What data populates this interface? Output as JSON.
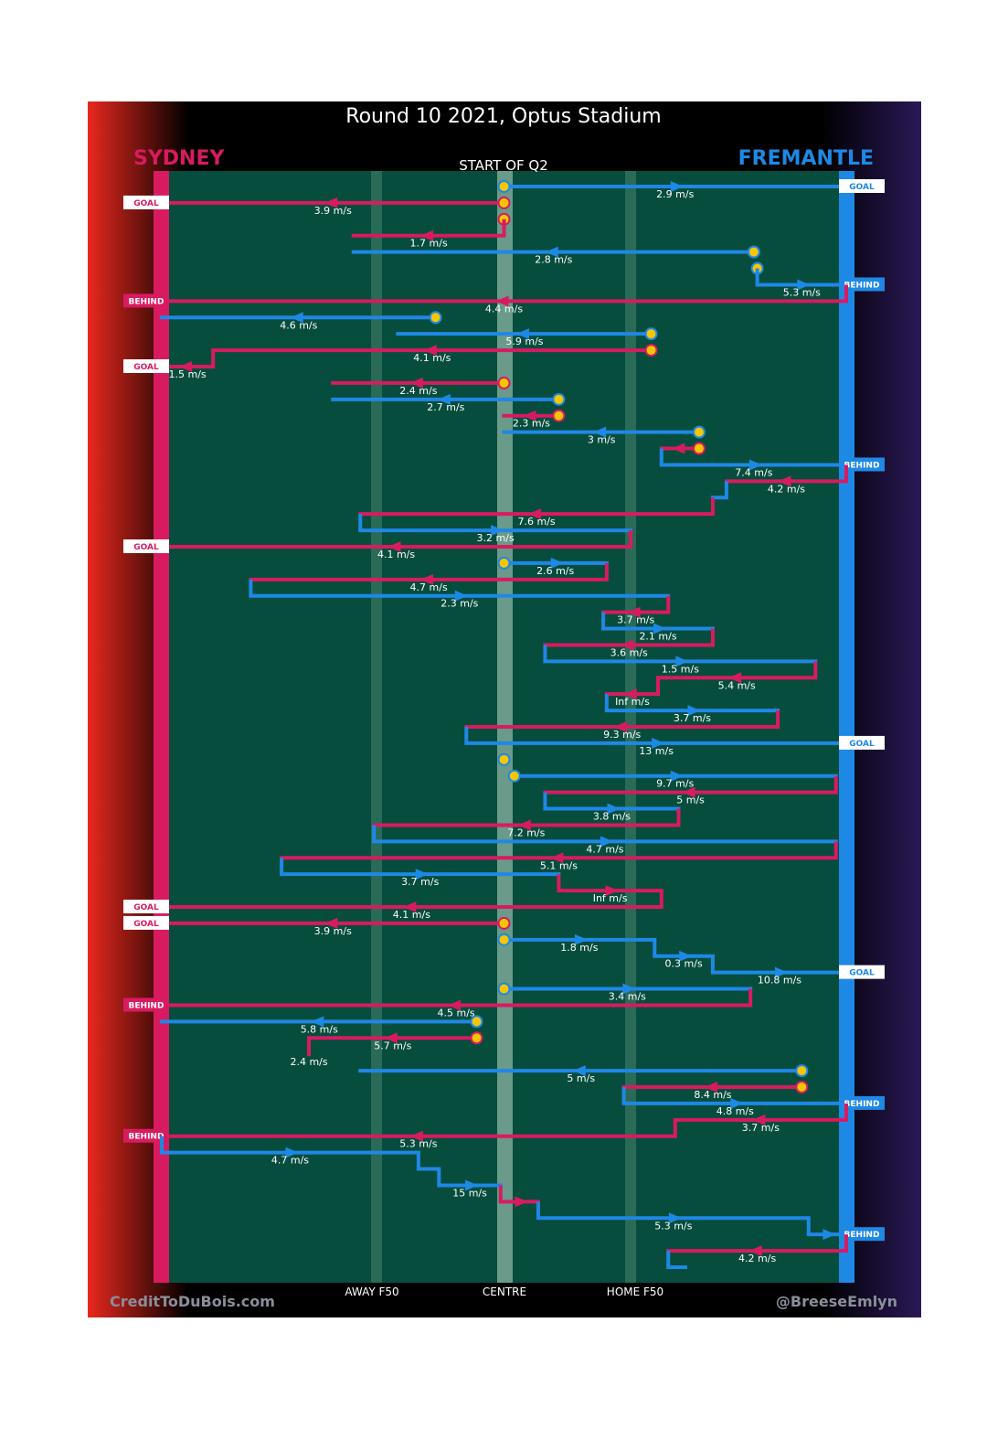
{
  "chart_data": {
    "type": "line",
    "title": "Round 10 2021, Optus Stadium",
    "subtitle": "START OF Q2",
    "teams": {
      "left": "SYDNEY",
      "right": "FREMANTLE"
    },
    "colors": {
      "left": "#d81b60",
      "right": "#1e88e5",
      "field": "#064d3e",
      "marker": "#f7c600"
    },
    "x_labels": {
      "away": "AWAY F50",
      "centre": "CENTRE",
      "home": "HOME F50"
    },
    "x_axis": {
      "range": [
        -1,
        1
      ],
      "away_f50": -0.4,
      "centre": 0,
      "home_f50": 0.375
    },
    "credits": {
      "left": "CreditToDuBois.com",
      "right": "@BreeseEmlyn"
    },
    "chains": [
      {
        "team": "fre",
        "end_x": 1.0,
        "start_x": 0.0,
        "steps": [],
        "speed": "2.9 m/s",
        "outcome": "GOAL"
      },
      {
        "team": "syd",
        "end_x": -1.0,
        "start_x": 0.0,
        "steps": [],
        "speed": "3.9 m/s",
        "outcome": "GOAL"
      },
      {
        "team": "syd",
        "end_x": 0.0,
        "start_x": 0.0,
        "steps": [],
        "speed": "",
        "outcome": ""
      },
      {
        "team": "syd",
        "end_x": -0.44,
        "start_x": 0.0,
        "steps": [],
        "speed": "1.7 m/s",
        "outcome": ""
      },
      {
        "team": "fre",
        "end_x": -0.44,
        "start_x": 0.73,
        "steps": [],
        "speed": "2.8 m/s",
        "outcome": ""
      },
      {
        "team": "fre",
        "end_x": 0.74,
        "start_x": 0.74,
        "steps": [
          0.74,
          0.74
        ],
        "speed": "",
        "outcome": ""
      },
      {
        "team": "fre",
        "end_x": 1.0,
        "start_x": 0.74,
        "steps": [],
        "speed": "5.3 m/s",
        "outcome": "BEHIND"
      },
      {
        "team": "syd",
        "end_x": -1.0,
        "start_x": 1.0,
        "steps": [],
        "speed": "4.4 m/s",
        "outcome": "BEHIND"
      },
      {
        "team": "fre",
        "end_x": -1.0,
        "start_x": -0.2,
        "steps": [],
        "speed": "4.6 m/s",
        "outcome": ""
      },
      {
        "team": "fre",
        "end_x": -0.31,
        "start_x": 0.43,
        "steps": [],
        "speed": "5.9 m/s",
        "outcome": ""
      },
      {
        "team": "syd",
        "end_x": -0.85,
        "start_x": 0.43,
        "steps": [],
        "speed": "4.1 m/s",
        "outcome": ""
      },
      {
        "team": "syd",
        "end_x": -1.0,
        "start_x": -0.85,
        "steps": [],
        "speed": "1.5 m/s",
        "outcome": "GOAL"
      },
      {
        "team": "syd",
        "end_x": -0.5,
        "start_x": 0.0,
        "steps": [],
        "speed": "2.4 m/s",
        "outcome": ""
      },
      {
        "team": "fre",
        "end_x": -0.5,
        "start_x": 0.16,
        "steps": [],
        "speed": "2.7 m/s",
        "outcome": ""
      },
      {
        "team": "syd",
        "end_x": 0.0,
        "start_x": 0.16,
        "steps": [],
        "speed": "2.3 m/s",
        "outcome": ""
      },
      {
        "team": "fre",
        "end_x": 0.0,
        "start_x": 0.57,
        "steps": [],
        "speed": "3 m/s",
        "outcome": ""
      },
      {
        "team": "syd",
        "end_x": 0.46,
        "start_x": 0.57,
        "steps": [],
        "speed": "",
        "outcome": ""
      },
      {
        "team": "fre",
        "end_x": 1.0,
        "start_x": 0.46,
        "steps": [],
        "speed": "7.4 m/s",
        "outcome": "BEHIND"
      },
      {
        "team": "syd",
        "end_x": 0.65,
        "start_x": 1.0,
        "steps": [],
        "speed": "4.2 m/s",
        "outcome": ""
      },
      {
        "team": "fre",
        "end_x": 0.61,
        "start_x": 0.65,
        "steps": [],
        "speed": "",
        "outcome": ""
      },
      {
        "team": "syd",
        "end_x": -0.42,
        "start_x": 0.61,
        "steps": [],
        "speed": "7.6 m/s",
        "outcome": ""
      },
      {
        "team": "fre",
        "end_x": 0.37,
        "start_x": -0.42,
        "steps": [],
        "speed": "3.2 m/s",
        "outcome": ""
      },
      {
        "team": "syd",
        "end_x": -1.0,
        "start_x": 0.37,
        "steps": [],
        "speed": "4.1 m/s",
        "outcome": "GOAL"
      },
      {
        "team": "fre",
        "end_x": 0.3,
        "start_x": 0.0,
        "steps": [],
        "speed": "2.6 m/s",
        "outcome": ""
      },
      {
        "team": "syd",
        "end_x": -0.74,
        "start_x": 0.3,
        "steps": [],
        "speed": "4.7 m/s",
        "outcome": ""
      },
      {
        "team": "fre",
        "end_x": 0.48,
        "start_x": -0.74,
        "steps": [],
        "speed": "2.3 m/s",
        "outcome": ""
      },
      {
        "team": "syd",
        "end_x": 0.29,
        "start_x": 0.48,
        "steps": [],
        "speed": "3.7 m/s",
        "outcome": ""
      },
      {
        "team": "fre",
        "end_x": 0.61,
        "start_x": 0.29,
        "steps": [],
        "speed": "2.1 m/s",
        "outcome": ""
      },
      {
        "team": "syd",
        "end_x": 0.12,
        "start_x": 0.61,
        "steps": [],
        "speed": "3.6 m/s",
        "outcome": ""
      },
      {
        "team": "fre",
        "end_x": 0.91,
        "start_x": 0.12,
        "steps": [],
        "speed": "1.5 m/s",
        "outcome": ""
      },
      {
        "team": "syd",
        "end_x": 0.45,
        "start_x": 0.91,
        "steps": [],
        "speed": "5.4 m/s",
        "outcome": ""
      },
      {
        "team": "syd",
        "end_x": 0.3,
        "start_x": 0.45,
        "steps": [],
        "speed": "Inf m/s",
        "outcome": ""
      },
      {
        "team": "fre",
        "end_x": 0.8,
        "start_x": 0.3,
        "steps": [],
        "speed": "3.7 m/s",
        "outcome": ""
      },
      {
        "team": "syd",
        "end_x": -0.11,
        "start_x": 0.8,
        "steps": [],
        "speed": "9.3 m/s",
        "outcome": ""
      },
      {
        "team": "fre",
        "end_x": 1.0,
        "start_x": -0.11,
        "steps": [],
        "speed": "13 m/s",
        "outcome": "GOAL"
      },
      {
        "team": "fre",
        "end_x": 0.0,
        "start_x": 0.0,
        "steps": [],
        "speed": "",
        "outcome": ""
      },
      {
        "team": "fre",
        "end_x": 0.97,
        "start_x": 0.03,
        "steps": [],
        "speed": "9.7 m/s",
        "outcome": ""
      },
      {
        "team": "syd",
        "end_x": 0.12,
        "start_x": 0.97,
        "steps": [],
        "speed": "5 m/s",
        "outcome": ""
      },
      {
        "team": "fre",
        "end_x": 0.51,
        "start_x": 0.12,
        "steps": [],
        "speed": "3.8 m/s",
        "outcome": ""
      },
      {
        "team": "syd",
        "end_x": -0.38,
        "start_x": 0.51,
        "steps": [],
        "speed": "7.2 m/s",
        "outcome": ""
      },
      {
        "team": "fre",
        "end_x": 0.97,
        "start_x": -0.38,
        "steps": [],
        "speed": "4.7 m/s",
        "outcome": ""
      },
      {
        "team": "syd",
        "end_x": -0.65,
        "start_x": 0.97,
        "steps": [],
        "speed": "5.1 m/s",
        "outcome": ""
      },
      {
        "team": "fre",
        "end_x": 0.16,
        "start_x": -0.65,
        "steps": [],
        "speed": "3.7 m/s",
        "outcome": ""
      },
      {
        "team": "syd",
        "end_x": 0.46,
        "start_x": 0.16,
        "steps": [],
        "speed": "Inf m/s",
        "outcome": ""
      },
      {
        "team": "syd",
        "end_x": -1.0,
        "start_x": 0.46,
        "steps": [],
        "speed": "4.1 m/s",
        "outcome": "GOAL"
      },
      {
        "team": "syd",
        "end_x": -1.0,
        "start_x": 0.0,
        "steps": [],
        "speed": "3.9 m/s",
        "outcome": "GOAL"
      },
      {
        "team": "fre",
        "end_x": 0.44,
        "start_x": 0.0,
        "steps": [],
        "speed": "1.8 m/s",
        "outcome": ""
      },
      {
        "team": "fre",
        "end_x": 0.61,
        "start_x": 0.44,
        "steps": [],
        "speed": "0.3 m/s",
        "outcome": ""
      },
      {
        "team": "fre",
        "end_x": 1.0,
        "start_x": 0.61,
        "steps": [],
        "speed": "10.8 m/s",
        "outcome": "GOAL"
      },
      {
        "team": "fre",
        "end_x": 0.72,
        "start_x": 0.0,
        "steps": [],
        "speed": "3.4 m/s",
        "outcome": ""
      },
      {
        "team": "syd",
        "end_x": -1.0,
        "start_x": 0.72,
        "steps": [],
        "speed": "4.5 m/s",
        "outcome": "BEHIND"
      },
      {
        "team": "fre",
        "end_x": -1.0,
        "start_x": -0.08,
        "steps": [],
        "speed": "5.8 m/s",
        "outcome": ""
      },
      {
        "team": "syd",
        "end_x": -0.57,
        "start_x": -0.08,
        "steps": [],
        "speed": "5.7 m/s",
        "outcome": ""
      },
      {
        "team": "syd",
        "end_x": -0.57,
        "start_x": -0.57,
        "steps": [],
        "speed": "2.4 m/s",
        "outcome": ""
      },
      {
        "team": "fre",
        "end_x": -0.42,
        "start_x": 0.87,
        "steps": [],
        "speed": "5 m/s",
        "outcome": ""
      },
      {
        "team": "syd",
        "end_x": 0.35,
        "start_x": 0.87,
        "steps": [],
        "speed": "8.4 m/s",
        "outcome": ""
      },
      {
        "team": "fre",
        "end_x": 1.0,
        "start_x": 0.35,
        "steps": [],
        "speed": "4.8 m/s",
        "outcome": "BEHIND"
      },
      {
        "team": "syd",
        "end_x": 0.5,
        "start_x": 1.0,
        "steps": [],
        "speed": "3.7 m/s",
        "outcome": ""
      },
      {
        "team": "syd",
        "end_x": -1.0,
        "start_x": 0.5,
        "steps": [],
        "speed": "5.3 m/s",
        "outcome": "BEHIND"
      },
      {
        "team": "fre",
        "end_x": -0.25,
        "start_x": -1.0,
        "steps": [],
        "speed": "4.7 m/s",
        "outcome": ""
      },
      {
        "team": "fre",
        "end_x": -0.19,
        "start_x": -0.25,
        "steps": [],
        "speed": "",
        "outcome": ""
      },
      {
        "team": "fre",
        "end_x": -0.01,
        "start_x": -0.19,
        "steps": [],
        "speed": "15 m/s",
        "outcome": ""
      },
      {
        "team": "syd",
        "end_x": 0.1,
        "start_x": -0.01,
        "steps": [],
        "speed": "",
        "outcome": ""
      },
      {
        "team": "fre",
        "end_x": 0.89,
        "start_x": 0.1,
        "steps": [],
        "speed": "5.3 m/s",
        "outcome": ""
      },
      {
        "team": "fre",
        "end_x": 1.0,
        "start_x": 0.89,
        "steps": [],
        "speed": "",
        "outcome": "BEHIND"
      },
      {
        "team": "syd",
        "end_x": 0.48,
        "start_x": 1.0,
        "steps": [],
        "speed": "4.2 m/s",
        "outcome": ""
      },
      {
        "team": "fre",
        "end_x": 0.53,
        "start_x": 0.48,
        "steps": [],
        "speed": "",
        "outcome": ""
      }
    ]
  }
}
